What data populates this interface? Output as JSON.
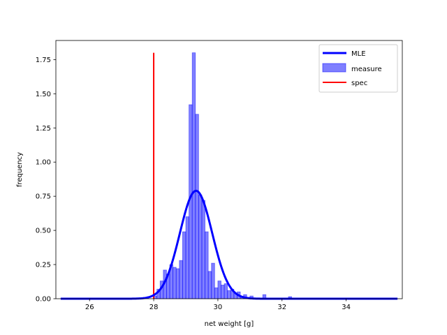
{
  "chart_data": {
    "type": "bar",
    "title": "",
    "xlabel": "net weight [g]",
    "ylabel": "frequency",
    "xlim": [
      24.95,
      35.75
    ],
    "ylim": [
      0,
      1.89
    ],
    "xticks": [
      26,
      28,
      30,
      32,
      34
    ],
    "xtick_labels": [
      "26",
      "28",
      "30",
      "32",
      "34"
    ],
    "yticks": [
      0,
      0.25,
      0.5,
      0.75,
      1.0,
      1.25,
      1.5,
      1.75
    ],
    "ytick_labels": [
      "0.00",
      "0.25",
      "0.50",
      "0.75",
      "1.00",
      "1.25",
      "1.50",
      "1.75"
    ],
    "grid": false,
    "legend_position": "top-right",
    "legend": [
      "MLE",
      "measure",
      "spec"
    ],
    "histogram": {
      "name": "measure",
      "color": "#0000ff",
      "bin_width": 0.1,
      "bins": [
        {
          "x": 28.0,
          "y": 0.02
        },
        {
          "x": 28.1,
          "y": 0.07
        },
        {
          "x": 28.2,
          "y": 0.13
        },
        {
          "x": 28.3,
          "y": 0.21
        },
        {
          "x": 28.4,
          "y": 0.18
        },
        {
          "x": 28.5,
          "y": 0.25
        },
        {
          "x": 28.6,
          "y": 0.23
        },
        {
          "x": 28.7,
          "y": 0.22
        },
        {
          "x": 28.8,
          "y": 0.28
        },
        {
          "x": 28.9,
          "y": 0.49
        },
        {
          "x": 29.0,
          "y": 0.6
        },
        {
          "x": 29.1,
          "y": 1.42
        },
        {
          "x": 29.2,
          "y": 1.8
        },
        {
          "x": 29.3,
          "y": 1.35
        },
        {
          "x": 29.4,
          "y": 0.76
        },
        {
          "x": 29.5,
          "y": 0.72
        },
        {
          "x": 29.6,
          "y": 0.49
        },
        {
          "x": 29.7,
          "y": 0.2
        },
        {
          "x": 29.8,
          "y": 0.26
        },
        {
          "x": 29.9,
          "y": 0.08
        },
        {
          "x": 30.0,
          "y": 0.13
        },
        {
          "x": 30.1,
          "y": 0.1
        },
        {
          "x": 30.2,
          "y": 0.11
        },
        {
          "x": 30.3,
          "y": 0.06
        },
        {
          "x": 30.4,
          "y": 0.07
        },
        {
          "x": 30.5,
          "y": 0.04
        },
        {
          "x": 30.6,
          "y": 0.05
        },
        {
          "x": 30.7,
          "y": 0.01
        },
        {
          "x": 30.8,
          "y": 0.03
        },
        {
          "x": 30.9,
          "y": 0.01
        },
        {
          "x": 31.0,
          "y": 0.02
        },
        {
          "x": 31.4,
          "y": 0.03
        },
        {
          "x": 32.2,
          "y": 0.015
        }
      ]
    },
    "series": [
      {
        "name": "MLE",
        "type": "line",
        "color": "#0000ff",
        "distribution": "normal",
        "mean": 29.32,
        "std": 0.505,
        "x_range": [
          25.1,
          35.6
        ]
      },
      {
        "name": "spec",
        "type": "vline",
        "color": "#ff0000",
        "x": 28.0,
        "y_range": [
          0,
          1.8
        ]
      }
    ]
  }
}
